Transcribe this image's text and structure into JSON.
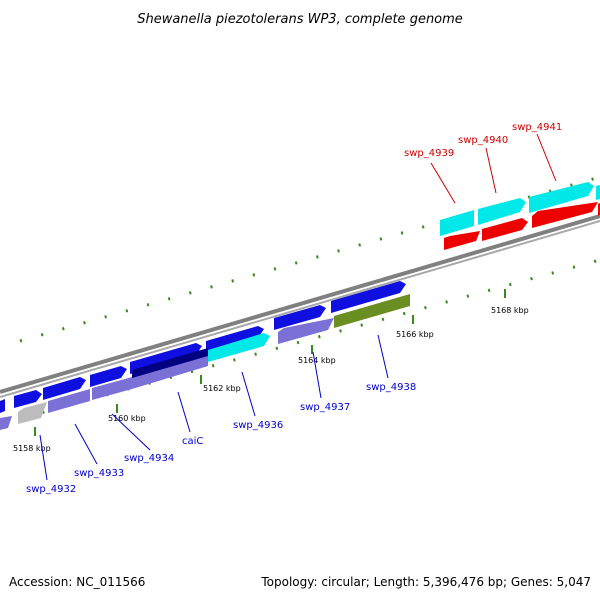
{
  "title": "Shewanella piezotolerans WP3, complete genome",
  "accession": "Accession: NC_011566",
  "summary": "Topology: circular; Length: 5,396,476 bp; Genes: 5,047",
  "colors": {
    "forward_cds": "#0f10e0",
    "gene_cyan": "#00e8e8",
    "gene_red": "#ee0000",
    "gene_lavender": "#7a70d6",
    "gene_gray": "#bcbcbc",
    "gene_navy": "#000080",
    "gene_olive": "#6b8e23",
    "backbone": "#808080",
    "gc_ticks": "#3a8a1e",
    "label_blue": "#0000cc",
    "label_red": "#cc0000"
  },
  "scale_labels": [
    "5158 kbp",
    "5160 kbp",
    "5162 kbp",
    "5164 kbp",
    "5166 kbp",
    "5168 kbp"
  ],
  "gene_labels": {
    "swp_4932": "swp_4932",
    "swp_4933": "swp_4933",
    "swp_4934": "swp_4934",
    "caiC": "caiC",
    "swp_4936": "swp_4936",
    "swp_4937": "swp_4937",
    "swp_4938": "swp_4938",
    "swp_4939": "swp_4939",
    "swp_4940": "swp_4940",
    "swp_4941": "swp_4941"
  }
}
